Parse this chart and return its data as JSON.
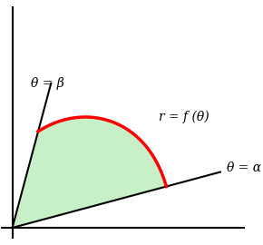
{
  "alpha_deg": 15,
  "beta_deg": 75,
  "r_at_alpha": 0.72,
  "r_at_beta": 0.45,
  "fill_color": "#c8f0c8",
  "fill_edge_color": "#90d890",
  "curve_color": "#ff0000",
  "line_color": "#000000",
  "axis_color": "#000000",
  "curve_linewidth": 2.5,
  "ray_linewidth": 1.5,
  "axis_linewidth": 1.5,
  "label_theta_eq_alpha": "θ = α",
  "label_theta_eq_beta": "θ = β",
  "label_r_eq_f_theta": "r = f (θ)",
  "figsize": [
    2.9,
    2.7
  ],
  "dpi": 100
}
